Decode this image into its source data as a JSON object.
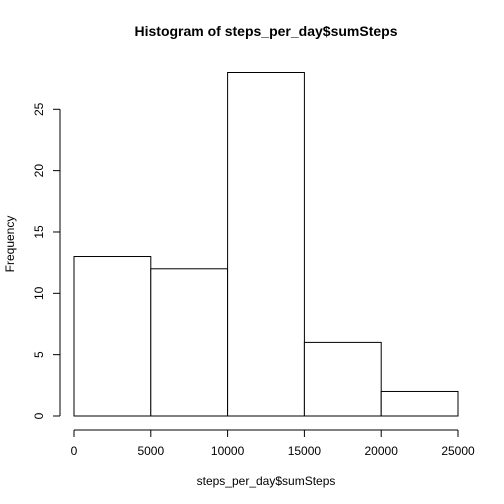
{
  "chart_data": {
    "type": "bar",
    "title": "Histogram of steps_per_day$sumSteps",
    "xlabel": "steps_per_day$sumSteps",
    "ylabel": "Frequency",
    "bins": [
      {
        "from": 0,
        "to": 5000,
        "count": 13
      },
      {
        "from": 5000,
        "to": 10000,
        "count": 12
      },
      {
        "from": 10000,
        "to": 15000,
        "count": 28
      },
      {
        "from": 15000,
        "to": 20000,
        "count": 6
      },
      {
        "from": 20000,
        "to": 25000,
        "count": 2
      }
    ],
    "xlim": [
      0,
      25000
    ],
    "ylim": [
      0,
      28
    ],
    "x_ticks": [
      0,
      5000,
      10000,
      15000,
      20000,
      25000
    ],
    "x_tick_labels": [
      "0",
      "5000",
      "10000",
      "15000",
      "20000",
      "25000"
    ],
    "y_ticks": [
      0,
      5,
      10,
      15,
      20,
      25
    ],
    "y_tick_labels": [
      "0",
      "5",
      "10",
      "15",
      "20",
      "25"
    ],
    "grid": false,
    "legend": "none",
    "colors": {
      "bar_fill": "#ffffff",
      "bar_stroke": "#000000",
      "background": "#ffffff"
    }
  }
}
